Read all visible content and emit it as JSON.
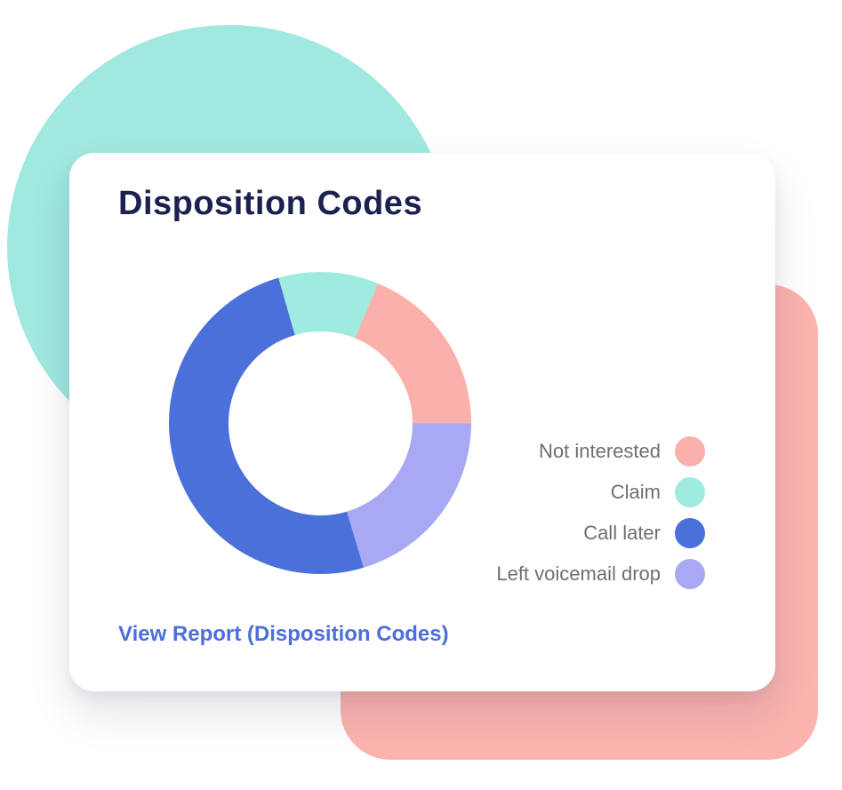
{
  "theme": {
    "title_color": "#1B2150",
    "muted_color": "#6D6F71",
    "link_color": "#4C6FDA",
    "circle_color": "#A0E8E0",
    "square_color": "#FBB4AE",
    "card_bg": "#FFFFFF"
  },
  "card": {
    "link_label": "View Report (Disposition Codes)"
  },
  "chart_data": {
    "type": "pie",
    "variant": "donut",
    "title": "Disposition Codes",
    "legend_position": "right",
    "inner_radius_ratio": 0.61,
    "start_angle_deg": -16,
    "draw_order": [
      1,
      0,
      3,
      2
    ],
    "series": [
      {
        "label": "Not interested",
        "percent": 18.8,
        "color": "#FBB1AB"
      },
      {
        "label": "Claim",
        "percent": 10.7,
        "color": "#A0EBE0"
      },
      {
        "label": "Call later",
        "percent": 50.2,
        "color": "#4B70DA"
      },
      {
        "label": "Left voicemail drop",
        "percent": 20.3,
        "color": "#A9A9F3"
      }
    ]
  }
}
